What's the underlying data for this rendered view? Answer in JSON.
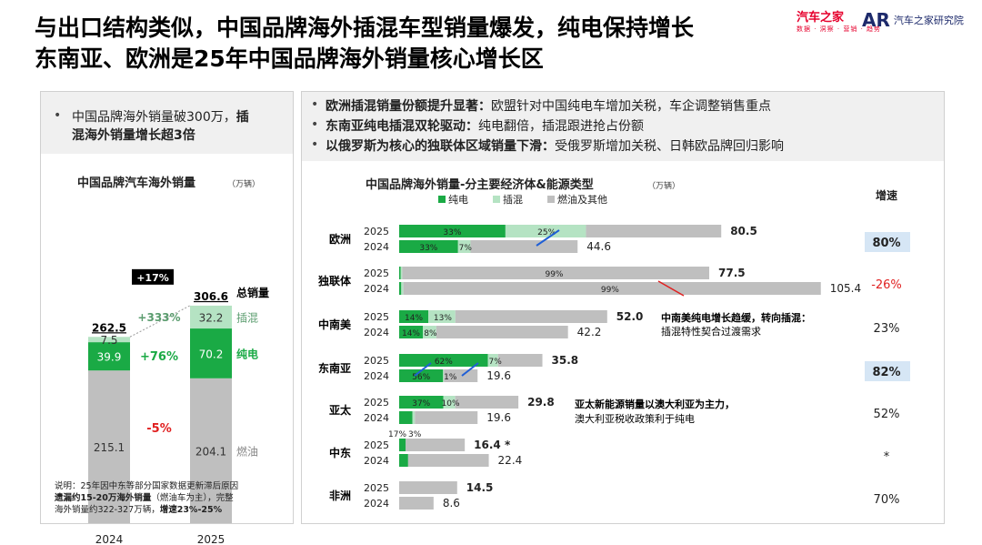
{
  "header": {
    "title_line1": "与出口结构类似，中国品牌海外插混车型销量爆发，纯电保持增长",
    "title_line2": "东南亚、欧洲是25年中国品牌海外销量核心增长区",
    "logo1_name": "汽车之家",
    "logo1_sub": "数据 · 洞察 · 营销 · 趋势",
    "logo2_mark": "AR",
    "logo2_name": "汽车之家研究院"
  },
  "left_panel": {
    "bullet_normal": "中国品牌海外销量破300万，",
    "bullet_bold_1": "插",
    "bullet_bold_2": "混海外销量增长超3倍",
    "note_1": "说明：25年因中东等部分国家数据更新滞后原因",
    "note_2_bold": "遗漏约15-20万海外销量",
    "note_2_rest": "（燃油车为主），完整",
    "note_3": "海外销量约322-327万辆，",
    "note_3_bold": "增速23%-25%"
  },
  "right_panel": {
    "bullets": [
      {
        "bold": "欧洲插混销量份额提升显著：",
        "text": "欧盟针对中国纯电车增加关税，车企调整销售重点"
      },
      {
        "bold": "东南亚纯电插混双轮驱动：",
        "text": "纯电翻倍，插混跟进抢占份额"
      },
      {
        "bold": "以俄罗斯为核心的独联体区域销量下滑：",
        "text": "受俄罗斯增加关税、日韩欧品牌回归影响"
      }
    ]
  },
  "colors": {
    "ev": "#1aaa45",
    "phev": "#b5e3c3",
    "ice": "#bfbfbf",
    "red": "#e02020",
    "blue": "#1f5fd6",
    "highlight": "#d6e6f5"
  },
  "chart_data": [
    {
      "type": "bar",
      "stacked": true,
      "title": "中国品牌汽车海外销量",
      "unit": "（万辆）",
      "categories": [
        "2024",
        "2025"
      ],
      "series": [
        {
          "name": "燃油",
          "values": [
            215.1,
            204.1
          ]
        },
        {
          "name": "纯电",
          "values": [
            39.9,
            70.2
          ]
        },
        {
          "name": "插混",
          "values": [
            7.5,
            32.2
          ]
        }
      ],
      "totals": [
        262.5,
        306.6
      ],
      "total_label": "总销量",
      "growth_total": "+17%",
      "growth_labels": {
        "插混": "+333%",
        "纯电": "+76%",
        "燃油": "-5%"
      }
    },
    {
      "type": "bar",
      "orientation": "horizontal",
      "stacked": true,
      "title": "中国品牌海外销量-分主要经济体&能源类型",
      "unit": "（万辆）",
      "legend": [
        "纯电",
        "插混",
        "燃油及其他"
      ],
      "growth_header": "增速",
      "regions": [
        {
          "name": "欧洲",
          "growth": "80%",
          "highlight": true,
          "rows": [
            {
              "year": "2025",
              "total": "80.5",
              "ev": 0.33,
              "phev": 0.25,
              "ev_label": "33%",
              "phev_label": "25%",
              "ice_label": ""
            },
            {
              "year": "2024",
              "total": "44.6",
              "ev": 0.33,
              "phev": 0.07,
              "ev_label": "33%",
              "phev_label": "7%",
              "ice_label": ""
            }
          ]
        },
        {
          "name": "独联体",
          "growth": "-26%",
          "red": true,
          "rows": [
            {
              "year": "2025",
              "total": "77.5",
              "ev": 0.005,
              "phev": 0.005,
              "ev_label": "",
              "phev_label": "",
              "ice_label": "99%"
            },
            {
              "year": "2024",
              "total": "105.4",
              "ev": 0.005,
              "phev": 0.005,
              "ev_label": "",
              "phev_label": "",
              "ice_label": "99%"
            }
          ]
        },
        {
          "name": "中南美",
          "growth": "23%",
          "rows": [
            {
              "year": "2025",
              "total": "52.0",
              "ev": 0.14,
              "phev": 0.13,
              "ev_label": "14%",
              "phev_label": "13%",
              "ice_label": ""
            },
            {
              "year": "2024",
              "total": "42.2",
              "ev": 0.14,
              "phev": 0.08,
              "ev_label": "14%",
              "phev_label": "8%",
              "ice_label": ""
            }
          ]
        },
        {
          "name": "东南亚",
          "growth": "82%",
          "highlight": true,
          "rows": [
            {
              "year": "2025",
              "total": "35.8",
              "ev": 0.62,
              "phev": 0.07,
              "ev_label": "62%",
              "phev_label": "7%",
              "ice_label": ""
            },
            {
              "year": "2024",
              "total": "19.6",
              "ev": 0.56,
              "phev": 0.01,
              "ev_label": "56%",
              "phev_label": "1%",
              "ice_label": ""
            }
          ]
        },
        {
          "name": "亚太",
          "growth": "52%",
          "rows": [
            {
              "year": "2025",
              "total": "29.8",
              "ev": 0.37,
              "phev": 0.1,
              "ev_label": "37%",
              "phev_label": "10%",
              "ice_label": ""
            },
            {
              "year": "2024",
              "total": "19.6",
              "ev": 0.17,
              "phev": 0.03,
              "ev_label": "17%",
              "phev_label": "3%",
              "ice_label": "",
              "outside_labels": true
            }
          ]
        },
        {
          "name": "中东",
          "growth": "*",
          "rows": [
            {
              "year": "2025",
              "total": "16.4 *",
              "ev": 0.1,
              "phev": 0.0,
              "ev_label": "",
              "phev_label": "",
              "ice_label": ""
            },
            {
              "year": "2024",
              "total": "22.4",
              "ev": 0.1,
              "phev": 0.0,
              "ev_label": "",
              "phev_label": "",
              "ice_label": ""
            }
          ]
        },
        {
          "name": "非洲",
          "growth": "70%",
          "rows": [
            {
              "year": "2025",
              "total": "14.5",
              "ev": 0.0,
              "phev": 0.0,
              "ev_label": "",
              "phev_label": "",
              "ice_label": ""
            },
            {
              "year": "2024",
              "total": "8.6",
              "ev": 0.0,
              "phev": 0.0,
              "ev_label": "",
              "phev_label": "",
              "ice_label": ""
            }
          ]
        }
      ],
      "annotations": [
        {
          "line1": "中南美纯电增长趋缓，转向插混：",
          "line2": "插混特性契合过渡需求"
        },
        {
          "line1": "亚太新能源销量以澳大利亚为主力，",
          "line2": "澳大利亚税收政策利于纯电"
        }
      ]
    }
  ]
}
